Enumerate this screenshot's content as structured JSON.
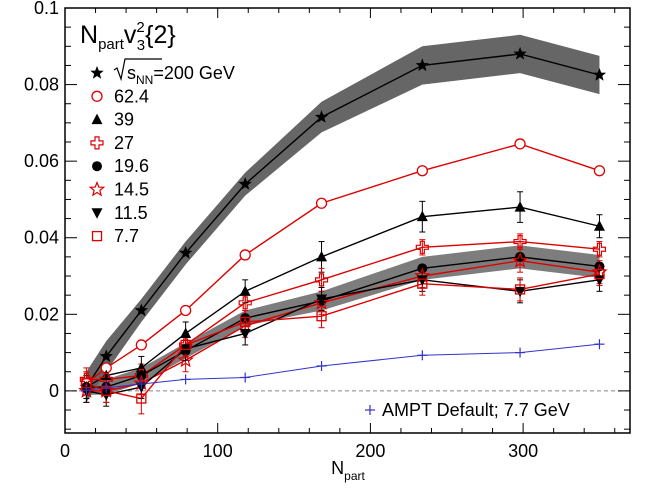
{
  "chart_data": {
    "type": "line",
    "title": {
      "main": "N",
      "sub": "part",
      "v": "v",
      "sup": "2",
      "sub2": "3",
      "tail": "{2}"
    },
    "xlabel": {
      "main": "N",
      "sub": "part"
    },
    "ylabel": "",
    "xlim": [
      0,
      370
    ],
    "ylim": [
      -0.011,
      0.1
    ],
    "xticks": [
      0,
      100,
      200,
      300
    ],
    "yticks": [
      0,
      0.02,
      0.04,
      0.06,
      0.08,
      0.1
    ],
    "xtick_labels": [
      "0",
      "100",
      "200",
      "300"
    ],
    "ytick_labels": [
      "0",
      "0.02",
      "0.04",
      "0.06",
      "0.08",
      "0.1"
    ],
    "zero_line": true,
    "legend_position": "top-left",
    "energy_label": {
      "s": "s",
      "sub": "NN",
      "tail": "=200 GeV"
    },
    "series": [
      {
        "name": "=200 GeV",
        "color": "#000000",
        "marker": "star-filled",
        "x": [
          14,
          27,
          50,
          79,
          118,
          168,
          234,
          298,
          350
        ],
        "y": [
          0.001,
          0.009,
          0.021,
          0.036,
          0.054,
          0.0715,
          0.085,
          0.088,
          0.0825
        ],
        "band": [
          0.004,
          0.004,
          0.003,
          0.003,
          0.003,
          0.004,
          0.005,
          0.005,
          0.005
        ]
      },
      {
        "name": "62.4",
        "color": "#dd0000",
        "marker": "circle-open",
        "x": [
          14,
          27,
          50,
          79,
          118,
          168,
          234,
          298,
          350
        ],
        "y": [
          0.002,
          0.006,
          0.012,
          0.021,
          0.0355,
          0.049,
          0.0575,
          0.0645,
          0.0575
        ],
        "err": [
          0.001,
          0.001,
          0.001,
          0.001,
          0.001,
          0.001,
          0.001,
          0.001,
          0.001
        ]
      },
      {
        "name": "39",
        "color": "#000000",
        "marker": "triangle-filled",
        "x": [
          14,
          27,
          50,
          79,
          118,
          168,
          234,
          298,
          350
        ],
        "y": [
          0.001,
          0.004,
          0.006,
          0.015,
          0.026,
          0.035,
          0.0455,
          0.048,
          0.043
        ],
        "err": [
          0.003,
          0.003,
          0.003,
          0.003,
          0.003,
          0.004,
          0.004,
          0.004,
          0.003
        ]
      },
      {
        "name": "27",
        "color": "#dd0000",
        "marker": "cross-open",
        "x": [
          14,
          27,
          50,
          79,
          118,
          168,
          234,
          298,
          350
        ],
        "y": [
          0.003,
          0.003,
          0.004,
          0.012,
          0.023,
          0.029,
          0.0375,
          0.039,
          0.037
        ],
        "err": [
          0.003,
          0.003,
          0.003,
          0.003,
          0.003,
          0.003,
          0.002,
          0.002,
          0.002
        ]
      },
      {
        "name": "19.6",
        "color": "#000000",
        "marker": "circle-filled",
        "x": [
          14,
          27,
          50,
          79,
          118,
          168,
          234,
          298,
          350
        ],
        "y": [
          0.001,
          0.001,
          0.004,
          0.0105,
          0.019,
          0.0235,
          0.032,
          0.035,
          0.0325
        ],
        "band": [
          0.002,
          0.002,
          0.002,
          0.002,
          0.002,
          0.0025,
          0.003,
          0.003,
          0.003
        ]
      },
      {
        "name": "14.5",
        "color": "#dd0000",
        "marker": "star-open",
        "x": [
          14,
          27,
          50,
          79,
          118,
          168,
          234,
          298,
          350
        ],
        "y": [
          0.0,
          0.0,
          0.002,
          0.008,
          0.017,
          0.023,
          0.03,
          0.034,
          0.031
        ],
        "err": [
          0.003,
          0.003,
          0.003,
          0.003,
          0.003,
          0.003,
          0.003,
          0.003,
          0.003
        ]
      },
      {
        "name": "11.5",
        "color": "#000000",
        "marker": "triangle-down-filled",
        "x": [
          14,
          27,
          50,
          79,
          118,
          168,
          234,
          298,
          350
        ],
        "y": [
          0.0,
          -0.001,
          0.001,
          0.011,
          0.015,
          0.024,
          0.029,
          0.026,
          0.029
        ],
        "err": [
          0.003,
          0.003,
          0.003,
          0.003,
          0.003,
          0.003,
          0.003,
          0.003,
          0.003
        ]
      },
      {
        "name": "7.7",
        "color": "#dd0000",
        "marker": "square-open",
        "x": [
          14,
          27,
          50,
          79,
          118,
          168,
          234,
          298,
          350
        ],
        "y": [
          0.002,
          0.0,
          -0.002,
          0.012,
          0.018,
          0.0195,
          0.028,
          0.0265,
          0.0305
        ],
        "err": [
          0.003,
          0.003,
          0.004,
          0.003,
          0.003,
          0.003,
          0.003,
          0.003,
          0.003
        ]
      },
      {
        "name": "AMPT Default; 7.7 GeV",
        "color": "#3333cc",
        "marker": "plus",
        "x": [
          14,
          27,
          50,
          79,
          118,
          168,
          234,
          298,
          350
        ],
        "y": [
          0.0002,
          0.0008,
          0.0018,
          0.003,
          0.0035,
          0.0065,
          0.0093,
          0.01,
          0.0122
        ]
      }
    ]
  }
}
